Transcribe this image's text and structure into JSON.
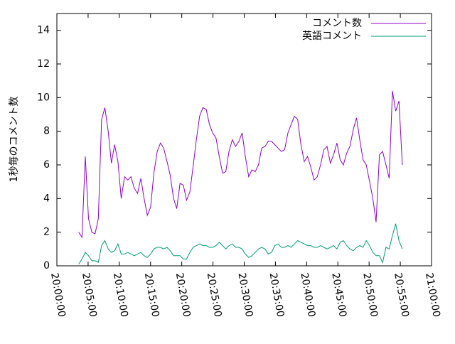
{
  "chart_data": {
    "type": "line",
    "y_label": "1秒毎のコメント数",
    "xlim": [
      "20:00:00",
      "21:00:00"
    ],
    "xticks": [
      "20:00:00",
      "20:05:00",
      "20:10:00",
      "20:15:00",
      "20:20:00",
      "20:25:00",
      "20:30:00",
      "20:35:00",
      "20:40:00",
      "20:45:00",
      "20:50:00",
      "20:55:00",
      "21:00:00"
    ],
    "ylim": [
      0,
      15
    ],
    "yticks": [
      0,
      2,
      4,
      6,
      8,
      10,
      12,
      14
    ],
    "legend": "top-right",
    "x": [
      "20:03:30",
      "20:04:01",
      "20:04:33",
      "20:05:04",
      "20:05:36",
      "20:06:07",
      "20:06:38",
      "20:07:10",
      "20:07:41",
      "20:08:13",
      "20:08:44",
      "20:09:15",
      "20:09:47",
      "20:10:18",
      "20:10:50",
      "20:11:21",
      "20:11:52",
      "20:12:24",
      "20:12:55",
      "20:13:27",
      "20:13:58",
      "20:14:29",
      "20:15:01",
      "20:15:32",
      "20:16:04",
      "20:16:35",
      "20:17:06",
      "20:17:38",
      "20:18:09",
      "20:18:41",
      "20:19:12",
      "20:19:43",
      "20:20:15",
      "20:20:46",
      "20:21:18",
      "20:21:49",
      "20:22:20",
      "20:22:52",
      "20:23:23",
      "20:23:55",
      "20:24:26",
      "20:24:57",
      "20:25:29",
      "20:26:00",
      "20:26:32",
      "20:27:03",
      "20:27:34",
      "20:28:06",
      "20:28:37",
      "20:29:09",
      "20:29:40",
      "20:30:11",
      "20:30:43",
      "20:31:14",
      "20:31:46",
      "20:32:17",
      "20:32:48",
      "20:33:20",
      "20:33:51",
      "20:34:23",
      "20:34:54",
      "20:35:25",
      "20:35:57",
      "20:36:28",
      "20:37:00",
      "20:37:31",
      "20:38:02",
      "20:38:34",
      "20:39:05",
      "20:39:37",
      "20:40:08",
      "20:40:39",
      "20:41:11",
      "20:41:42",
      "20:42:14",
      "20:42:45",
      "20:43:16",
      "20:43:48",
      "20:44:19",
      "20:44:51",
      "20:45:22",
      "20:45:53",
      "20:46:25",
      "20:46:56",
      "20:47:28",
      "20:47:59",
      "20:48:30",
      "20:49:02",
      "20:49:33",
      "20:50:05",
      "20:50:36",
      "20:51:07",
      "20:51:39",
      "20:52:10",
      "20:52:42",
      "20:53:13",
      "20:53:44",
      "20:54:16",
      "20:54:47",
      "20:55:19"
    ],
    "series": [
      {
        "name": "コメント数",
        "color": "#9400d3",
        "values": [
          2.0,
          1.7,
          6.5,
          2.8,
          2.0,
          1.9,
          2.8,
          8.7,
          9.4,
          8.0,
          6.1,
          7.2,
          6.2,
          4.0,
          5.3,
          5.1,
          5.3,
          4.6,
          4.3,
          5.2,
          4.0,
          3.0,
          3.5,
          5.5,
          6.8,
          7.3,
          7.0,
          6.2,
          5.4,
          4.0,
          3.4,
          4.9,
          4.8,
          3.9,
          4.4,
          5.9,
          7.5,
          8.9,
          9.4,
          9.3,
          8.4,
          7.9,
          7.6,
          6.5,
          5.5,
          5.6,
          6.8,
          7.5,
          7.1,
          7.4,
          7.9,
          6.5,
          5.3,
          5.7,
          5.6,
          6.0,
          7.0,
          7.1,
          7.4,
          7.4,
          7.2,
          7.0,
          6.8,
          6.9,
          7.9,
          8.4,
          8.9,
          8.7,
          7.2,
          6.2,
          6.5,
          5.9,
          5.1,
          5.3,
          6.0,
          6.9,
          7.1,
          6.1,
          6.6,
          7.3,
          6.3,
          6.0,
          6.7,
          7.1,
          8.1,
          8.8,
          7.5,
          6.3,
          6.0,
          5.0,
          4.0,
          2.6,
          6.6,
          6.8,
          6.0,
          5.2,
          10.4,
          9.2,
          9.8,
          6.0
        ]
      },
      {
        "name": "英語コメント",
        "color": "#009e73",
        "values": [
          0.1,
          0.4,
          0.8,
          0.6,
          0.3,
          0.3,
          0.2,
          1.2,
          1.5,
          1.0,
          0.8,
          0.9,
          1.3,
          0.7,
          0.7,
          0.8,
          0.7,
          0.6,
          0.7,
          0.8,
          0.6,
          0.5,
          0.7,
          1.0,
          1.1,
          1.1,
          1.0,
          1.1,
          0.9,
          0.6,
          0.6,
          0.6,
          0.4,
          0.4,
          0.8,
          1.1,
          1.2,
          1.3,
          1.2,
          1.2,
          1.1,
          1.1,
          1.2,
          1.4,
          1.2,
          1.0,
          1.2,
          1.3,
          1.1,
          1.1,
          1.0,
          0.7,
          0.5,
          0.6,
          0.8,
          1.0,
          1.1,
          1.0,
          0.7,
          0.8,
          1.2,
          1.3,
          1.1,
          1.1,
          1.2,
          1.1,
          1.3,
          1.5,
          1.4,
          1.3,
          1.2,
          1.2,
          1.1,
          1.1,
          1.2,
          1.1,
          1.0,
          1.1,
          1.2,
          1.0,
          1.4,
          1.5,
          1.2,
          1.0,
          0.9,
          1.1,
          1.2,
          1.1,
          1.5,
          1.2,
          0.8,
          0.6,
          0.6,
          0.2,
          1.1,
          1.0,
          1.8,
          2.5,
          1.5,
          1.0
        ]
      }
    ]
  }
}
